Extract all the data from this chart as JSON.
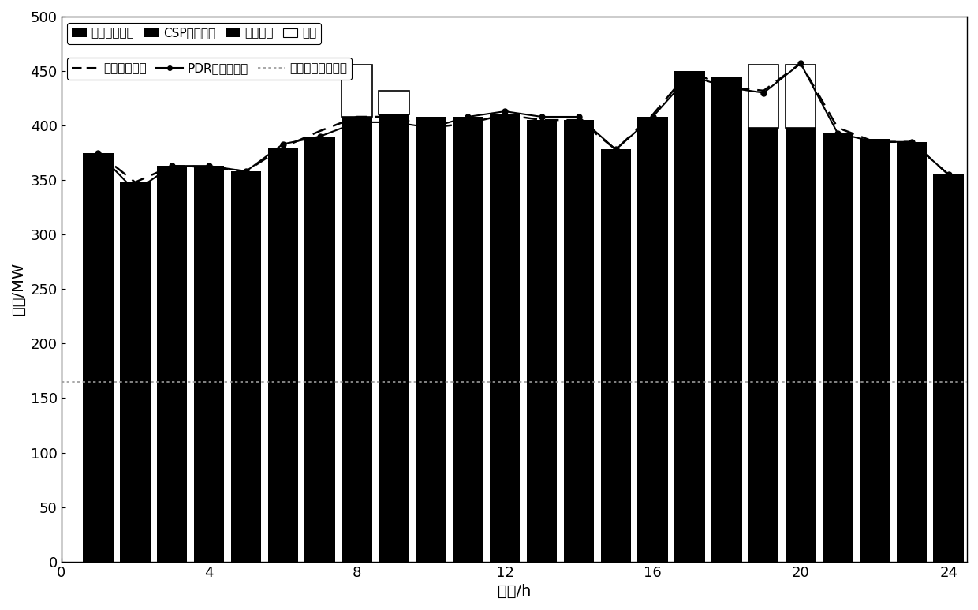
{
  "hours": [
    1,
    2,
    3,
    4,
    5,
    6,
    7,
    8,
    9,
    10,
    11,
    12,
    13,
    14,
    15,
    16,
    17,
    18,
    19,
    20,
    21,
    22,
    23,
    24
  ],
  "total_bar_height": [
    375,
    348,
    363,
    363,
    358,
    380,
    390,
    408,
    410,
    408,
    408,
    411,
    405,
    405,
    378,
    408,
    450,
    445,
    398,
    398,
    393,
    388,
    385,
    355
  ],
  "curtailed_wind": [
    0,
    0,
    0,
    0,
    0,
    0,
    0,
    48,
    22,
    0,
    0,
    0,
    0,
    0,
    0,
    0,
    0,
    0,
    58,
    58,
    0,
    0,
    0,
    0
  ],
  "original_load": [
    375,
    348,
    363,
    362,
    358,
    380,
    395,
    408,
    408,
    398,
    402,
    410,
    405,
    405,
    378,
    410,
    450,
    435,
    432,
    457,
    398,
    385,
    385,
    355
  ],
  "pdr_load": [
    375,
    340,
    363,
    363,
    358,
    383,
    390,
    403,
    403,
    398,
    408,
    413,
    408,
    408,
    378,
    408,
    446,
    435,
    430,
    457,
    393,
    385,
    385,
    355
  ],
  "min_thermal": 165,
  "ylim": [
    0,
    500
  ],
  "xlim": [
    0,
    24.5
  ],
  "xlim_left": 0,
  "xticks": [
    0,
    4,
    8,
    12,
    16,
    20,
    24
  ],
  "yticks": [
    0,
    50,
    100,
    150,
    200,
    250,
    300,
    350,
    400,
    450,
    500
  ],
  "xlabel": "时间/h",
  "ylabel": "功率/MW",
  "legend1": [
    "火电机组出力",
    "CSP电站出力",
    "风电上网",
    "弃风"
  ],
  "legend2": [
    "原始负荷曲线",
    "PDR后负荷曲线",
    "火电机组最小出力"
  ],
  "bar_width": 0.82,
  "bar_color": "#000000",
  "curtail_facecolor": "#ffffff",
  "curtail_edgecolor": "#000000",
  "min_line_color": "#888888"
}
